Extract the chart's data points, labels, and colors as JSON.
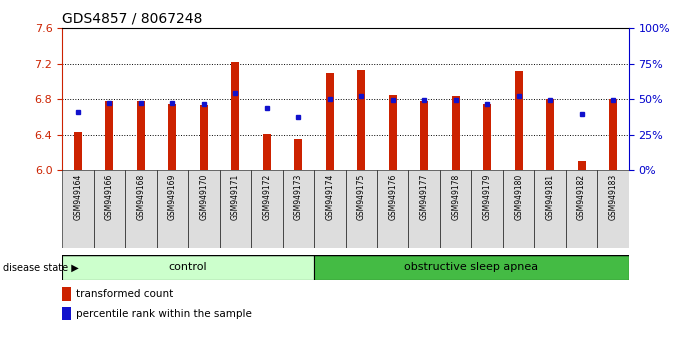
{
  "title": "GDS4857 / 8067248",
  "samples": [
    "GSM949164",
    "GSM949166",
    "GSM949168",
    "GSM949169",
    "GSM949170",
    "GSM949171",
    "GSM949172",
    "GSM949173",
    "GSM949174",
    "GSM949175",
    "GSM949176",
    "GSM949177",
    "GSM949178",
    "GSM949179",
    "GSM949180",
    "GSM949181",
    "GSM949182",
    "GSM949183"
  ],
  "bar_values": [
    6.43,
    6.78,
    6.78,
    6.75,
    6.73,
    7.22,
    6.41,
    6.35,
    7.09,
    7.13,
    6.85,
    6.78,
    6.83,
    6.74,
    7.12,
    6.8,
    6.1,
    6.8
  ],
  "dot_values": [
    6.65,
    6.76,
    6.76,
    6.76,
    6.75,
    6.87,
    6.7,
    6.6,
    6.8,
    6.83,
    6.79,
    6.79,
    6.79,
    6.74,
    6.83,
    6.79,
    6.63,
    6.79
  ],
  "ymin": 6.0,
  "ymax": 7.6,
  "yticks_left": [
    6.0,
    6.4,
    6.8,
    7.2,
    7.6
  ],
  "yticks_right": [
    0,
    25,
    50,
    75,
    100
  ],
  "bar_color": "#cc2200",
  "dot_color": "#1111cc",
  "control_samples": 8,
  "control_label": "control",
  "disease_label": "obstructive sleep apnea",
  "legend_bar_label": "transformed count",
  "legend_dot_label": "percentile rank within the sample",
  "group_label": "disease state",
  "control_color": "#ccffcc",
  "disease_color": "#44bb44",
  "tick_bg_color": "#dddddd",
  "bg_color": "#ffffff",
  "axis_color_left": "#cc2200",
  "axis_color_right": "#0000cc"
}
